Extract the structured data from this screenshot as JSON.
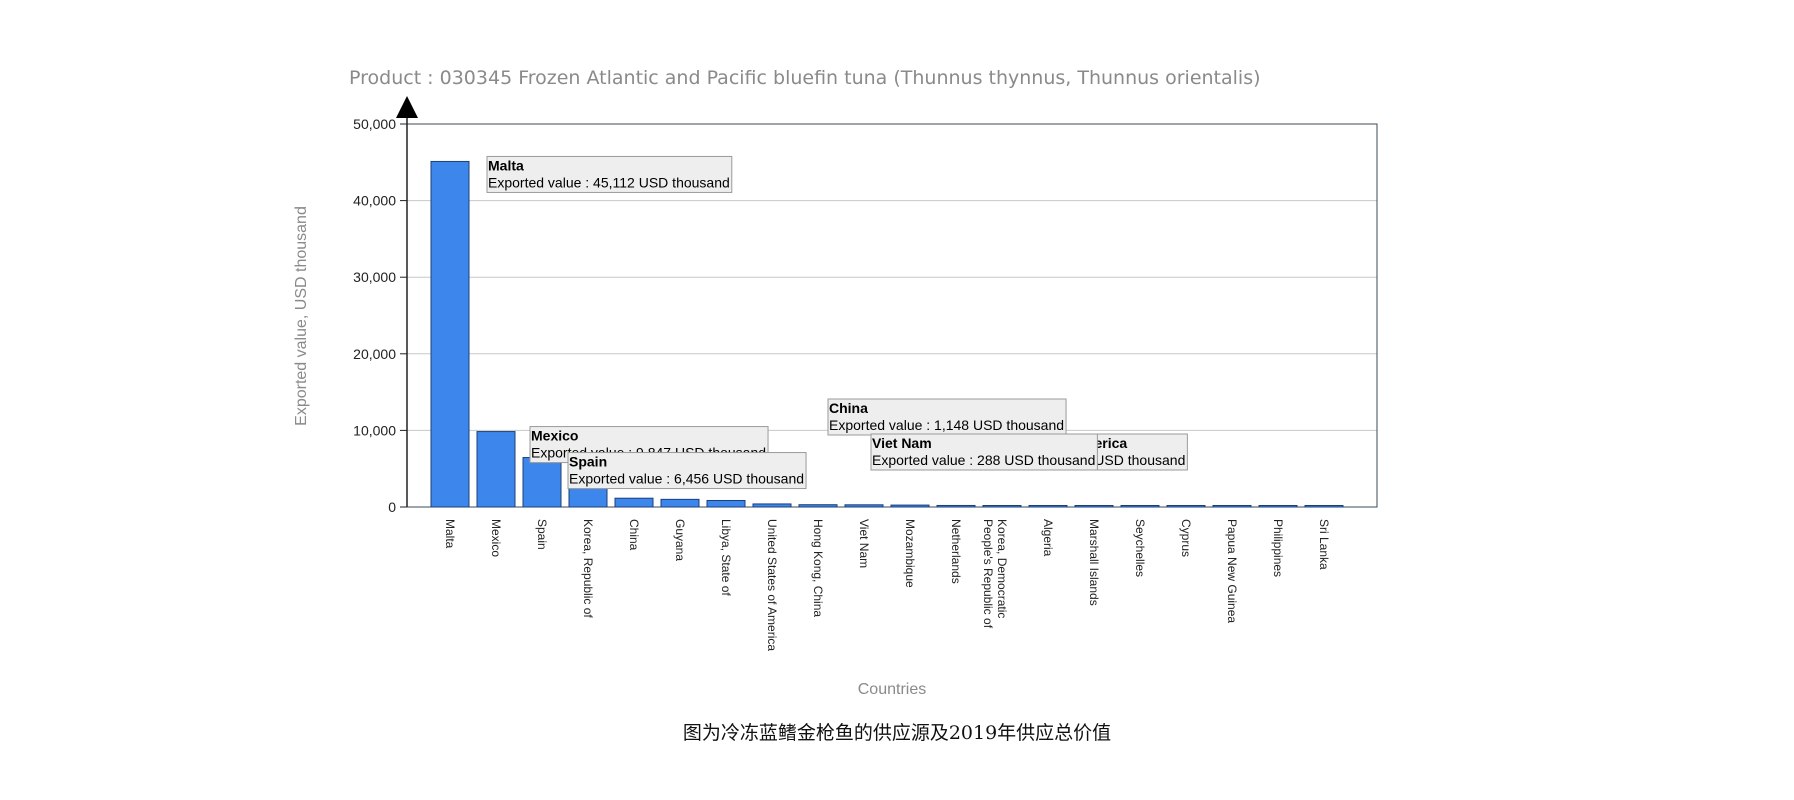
{
  "chart_data": {
    "type": "bar",
    "title": "Product : 030345 Frozen Atlantic and Pacific bluefin tuna (Thunnus thynnus, Thunnus orientalis)",
    "xlabel": "Countries",
    "ylabel": "Exported value, USD thousand",
    "ylim": [
      0,
      50000
    ],
    "yticks": [
      0,
      10000,
      20000,
      30000,
      40000,
      50000
    ],
    "ytick_labels": [
      "0",
      "10,000",
      "20,000",
      "30,000",
      "40,000",
      "50,000"
    ],
    "grid": true,
    "bar_color": "#3d87ec",
    "categories": [
      "Malta",
      "Mexico",
      "Spain",
      "Korea, Republic of",
      "China",
      "Guyana",
      "Libya, State of",
      "United States of America",
      "Hong Kong, China",
      "Viet Nam",
      "Mozambique",
      "Netherlands",
      "Korea, Democratic People's Republic of",
      "Algeria",
      "Marshall Islands",
      "Seychelles",
      "Cyprus",
      "Papua New Guinea",
      "Philippines",
      "Sri Lanka"
    ],
    "tick_lines": [
      [
        "Malta"
      ],
      [
        "Mexico"
      ],
      [
        "Spain"
      ],
      [
        "Korea, Republic of"
      ],
      [
        "China"
      ],
      [
        "Guyana"
      ],
      [
        "Libya, State of"
      ],
      [
        "United States of America"
      ],
      [
        "Hong Kong, China"
      ],
      [
        "Viet Nam"
      ],
      [
        "Mozambique"
      ],
      [
        "Netherlands"
      ],
      [
        "Korea, Democratic",
        "People's Republic of"
      ],
      [
        "Algeria"
      ],
      [
        "Marshall Islands"
      ],
      [
        "Seychelles"
      ],
      [
        "Cyprus"
      ],
      [
        "Papua New Guinea"
      ],
      [
        "Philippines"
      ],
      [
        "Sri Lanka"
      ]
    ],
    "values": [
      45112,
      9847,
      6456,
      3200,
      1148,
      1000,
      850,
      401,
      300,
      288,
      250,
      200,
      60,
      40,
      30,
      25,
      20,
      15,
      10,
      8
    ],
    "annotations": [
      {
        "country": "Malta",
        "text": "Exported value : 45,112 USD thousand"
      },
      {
        "country": "China",
        "text": "Exported value : 1,148 USD thousand"
      },
      {
        "country": "Mexico",
        "text": "Exported value : 9,847 USD thousand"
      },
      {
        "country": "United States of America",
        "text": "Exported value : 401 USD thousand"
      },
      {
        "country": "Spain",
        "text": "Exported value : 6,456 USD thousand"
      },
      {
        "country": "Viet Nam",
        "text": "Exported value : 288 USD thousand"
      }
    ]
  },
  "caption": "图为冷冻蓝鳍金枪鱼的供应源及2019年供应总价值"
}
